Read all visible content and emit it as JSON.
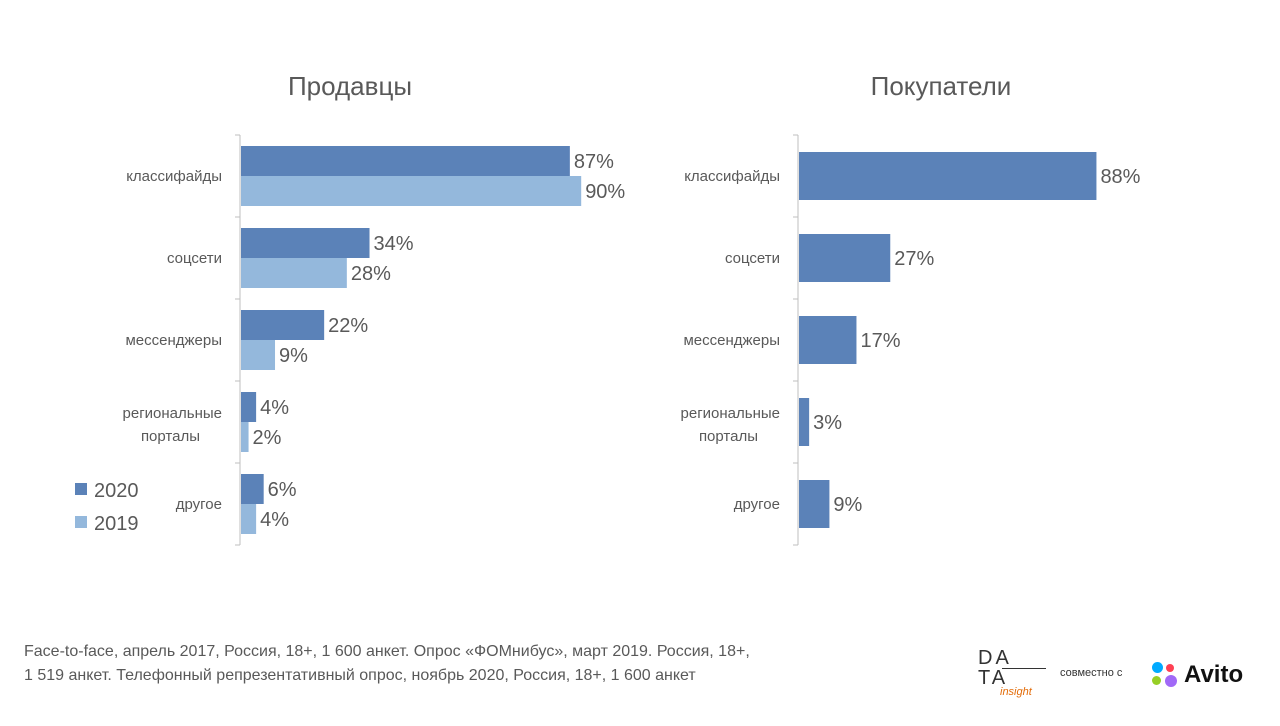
{
  "chart_data": [
    {
      "type": "bar",
      "orientation": "horizontal",
      "title": "Продавцы",
      "categories": [
        "классифайды",
        "соцсети",
        "мессенджеры",
        "региональные порталы",
        "другое"
      ],
      "series": [
        {
          "name": "2020",
          "values": [
            87,
            34,
            22,
            4,
            6
          ],
          "labels": [
            "87%",
            "34%",
            "22%",
            "4%",
            "6%"
          ],
          "color": "#5b82b8"
        },
        {
          "name": "2019",
          "values": [
            90,
            28,
            9,
            2,
            4
          ],
          "labels": [
            "90%",
            "28%",
            "9%",
            "2%",
            "4%"
          ],
          "color": "#94b8dc"
        }
      ],
      "xlim": [
        0,
        100
      ],
      "legend": {
        "position": "bottom-left",
        "entries": [
          "2020",
          "2019"
        ]
      }
    },
    {
      "type": "bar",
      "orientation": "horizontal",
      "title": "Покупатели",
      "categories": [
        "классифайды",
        "соцсети",
        "мессенджеры",
        "региональные порталы",
        "другое"
      ],
      "series": [
        {
          "name": "2020",
          "values": [
            88,
            27,
            17,
            3,
            9
          ],
          "labels": [
            "88%",
            "27%",
            "17%",
            "3%",
            "9%"
          ],
          "color": "#5b82b8"
        }
      ],
      "xlim": [
        0,
        100
      ]
    }
  ],
  "footer": {
    "line1": "Face-to-face, апрель 2017, Россия, 18+, 1 600 анкет. Опрос «ФОМнибус», март 2019. Россия, 18+,",
    "line2": "1 519 анкет. Телефонный репрезентативный опрос, ноябрь 2020, Россия, 18+, 1 600 анкет"
  },
  "logos": {
    "data_insight": {
      "line1": "DA",
      "line2": "TA",
      "sub": "insight"
    },
    "together": "совместно с",
    "avito": "Avito"
  },
  "colors": {
    "series_2020": "#5b82b8",
    "series_2019": "#94b8dc",
    "text": "#595959",
    "axis": "#bfbfbf"
  }
}
